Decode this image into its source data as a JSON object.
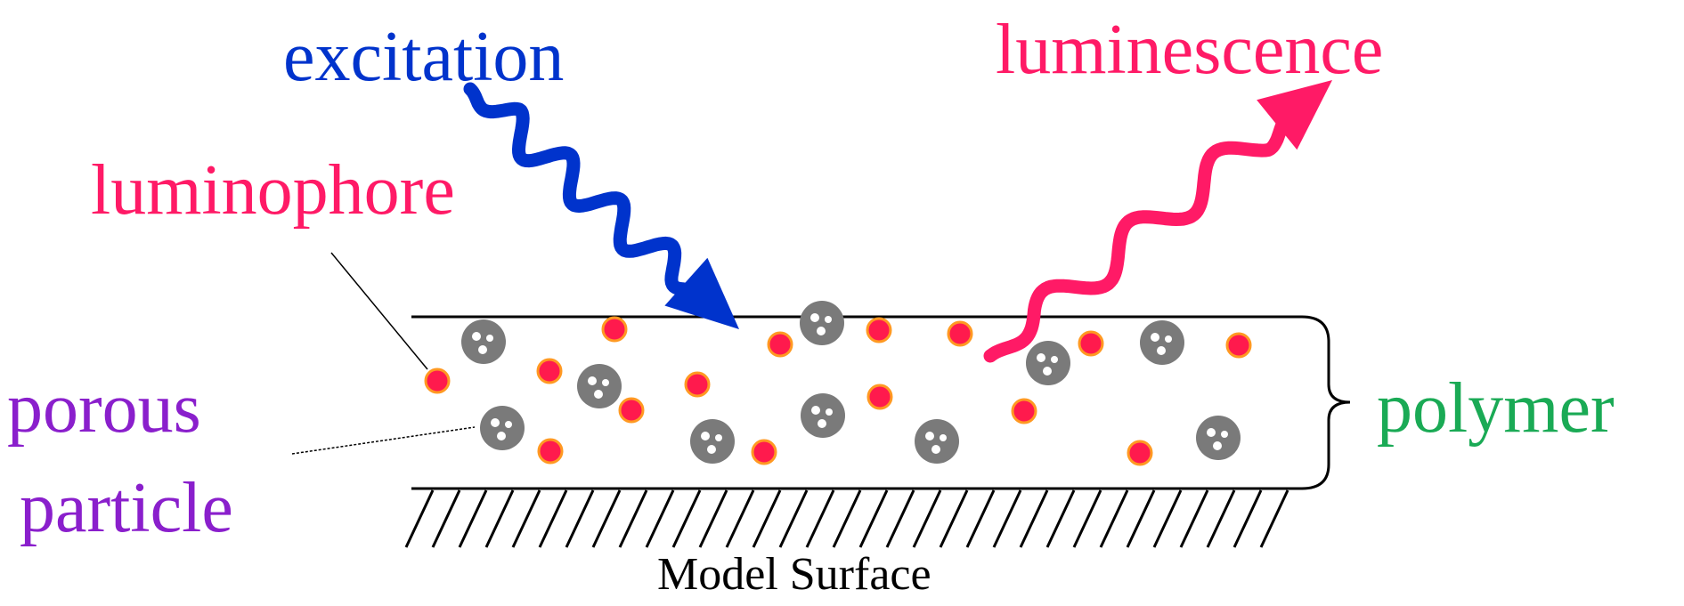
{
  "labels": {
    "excitation": "excitation",
    "luminescence": "luminescence",
    "luminophore": "luminophore",
    "porous_line1": "porous",
    "porous_line2": "particle",
    "polymer": "polymer",
    "model_surface": "Model Surface"
  },
  "colors": {
    "excitation": "#0033cc",
    "luminescence": "#ff1a66",
    "luminophore_label": "#ff1a66",
    "porous_label": "#8a1fcc",
    "polymer_label": "#1aaa55",
    "luminophore_fill": "#ff1a4d",
    "luminophore_rim": "#ff9922",
    "particle_fill": "#7a7a7a",
    "particle_pore": "#ffffff",
    "line": "#000000"
  },
  "icons": {
    "luminophore": "luminophore-dot-icon",
    "particle": "porous-particle-icon",
    "excitation": "wavy-arrow-icon",
    "luminescence": "wavy-arrow-icon"
  }
}
